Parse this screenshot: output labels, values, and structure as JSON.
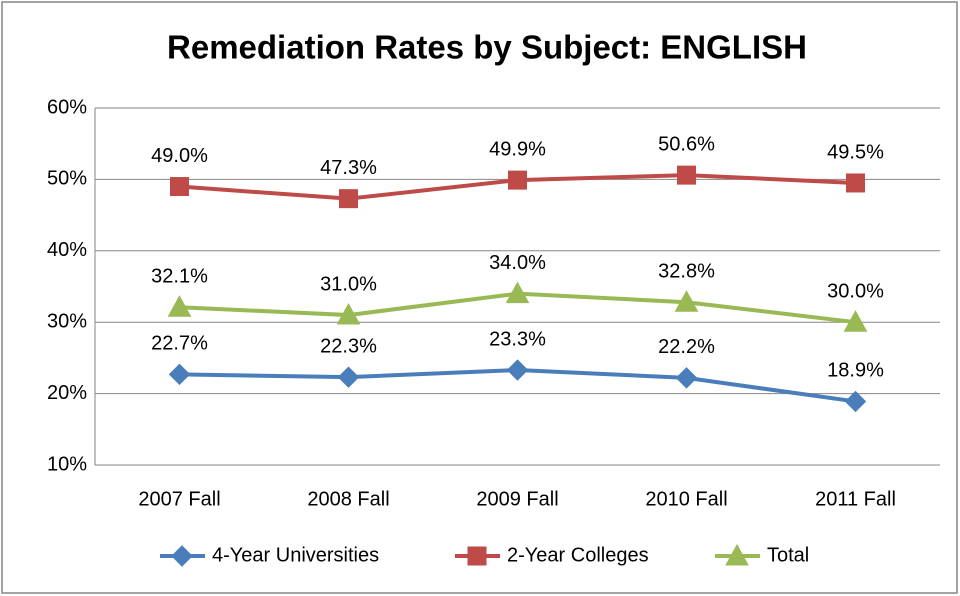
{
  "chart_data": {
    "type": "line",
    "title": "Remediation Rates by Subject: ENGLISH",
    "categories": [
      "2007 Fall",
      "2008 Fall",
      "2009 Fall",
      "2010 Fall",
      "2011 Fall"
    ],
    "series": [
      {
        "name": "4-Year Universities",
        "color": "#4a7ebb",
        "marker": "diamond",
        "values": [
          22.7,
          22.3,
          23.3,
          22.2,
          18.9
        ],
        "value_labels": [
          "22.7%",
          "22.3%",
          "23.3%",
          "22.2%",
          "18.9%"
        ]
      },
      {
        "name": "2-Year Colleges",
        "color": "#be4b48",
        "marker": "square",
        "values": [
          49.0,
          47.3,
          49.9,
          50.6,
          49.5
        ],
        "value_labels": [
          "49.0%",
          "47.3%",
          "49.9%",
          "50.6%",
          "49.5%"
        ]
      },
      {
        "name": "Total",
        "color": "#98b954",
        "marker": "triangle",
        "values": [
          32.1,
          31.0,
          34.0,
          32.8,
          30.0
        ],
        "value_labels": [
          "32.1%",
          "31.0%",
          "34.0%",
          "32.8%",
          "30.0%"
        ]
      }
    ],
    "ylim": [
      10,
      60
    ],
    "yticks": [
      {
        "value": 10,
        "label": "10%"
      },
      {
        "value": 20,
        "label": "20%"
      },
      {
        "value": 30,
        "label": "30%"
      },
      {
        "value": 40,
        "label": "40%"
      },
      {
        "value": 50,
        "label": "50%"
      },
      {
        "value": 60,
        "label": "60%"
      }
    ],
    "grid": true,
    "legend": "bottom"
  }
}
